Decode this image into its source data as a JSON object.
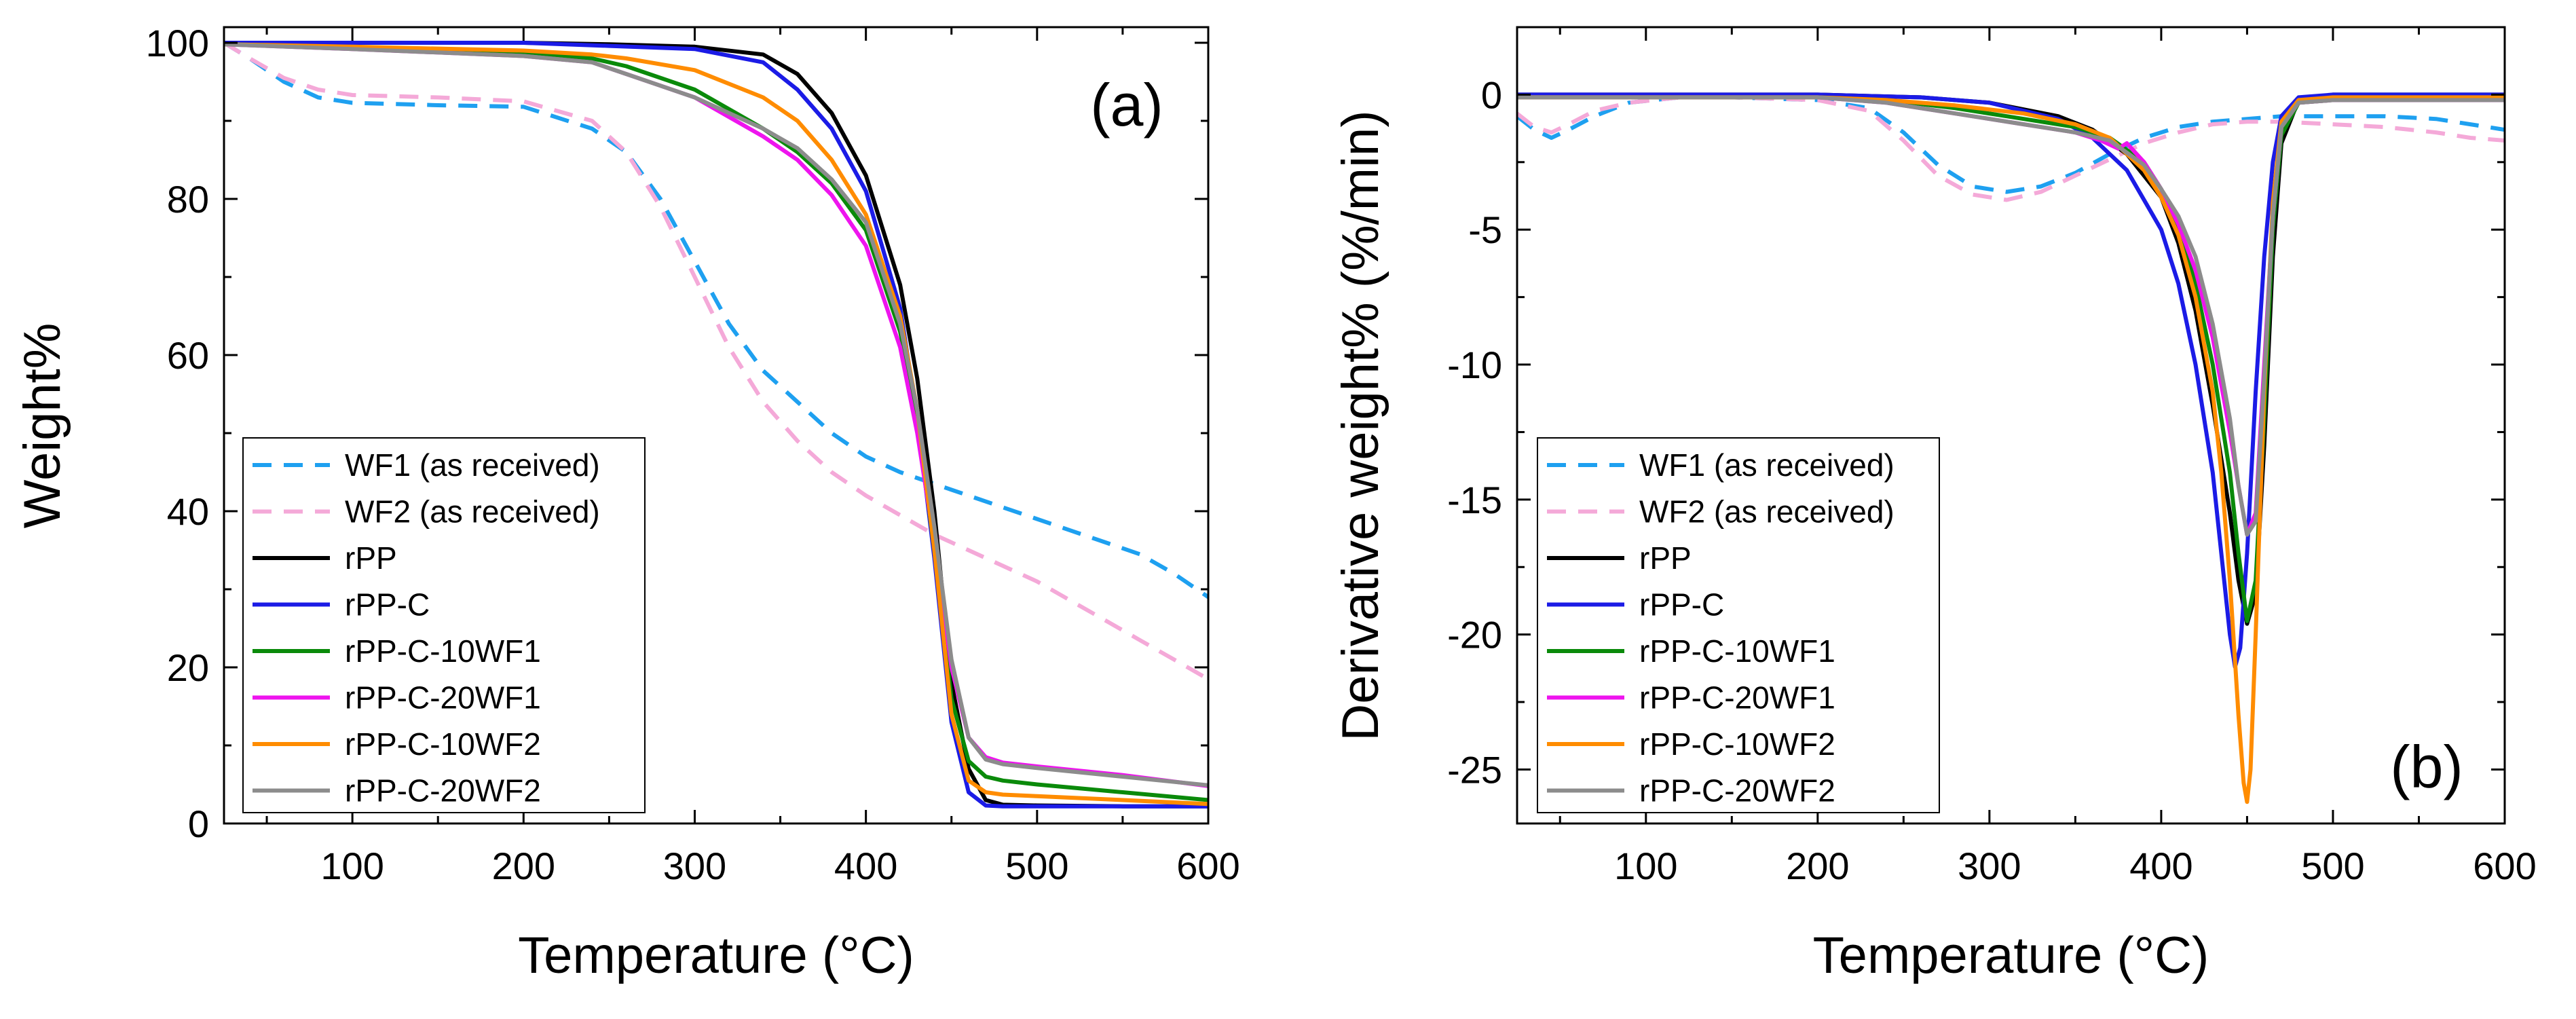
{
  "colors": {
    "WF1": "#1ea0f0",
    "WF2": "#f4a9d8",
    "rPP": "#000000",
    "rPP-C": "#1b1be6",
    "rPP-C-10WF1": "#0a8a0a",
    "rPP-C-20WF1": "#ee14ee",
    "rPP-C-10WF2": "#ff8c00",
    "rPP-C-20WF2": "#8c8c8c"
  },
  "chart_data": [
    {
      "type": "line",
      "panel_label": "(a)",
      "xlabel": "Temperature (°C)",
      "ylabel": "Weight%",
      "xlim": [
        25,
        600
      ],
      "ylim": [
        0,
        102
      ],
      "xticks": [
        100,
        200,
        300,
        400,
        500,
        600
      ],
      "yticks": [
        0,
        20,
        40,
        60,
        80,
        100
      ],
      "legend_position": "bottom-left",
      "series": [
        {
          "name": "WF1 (as received)",
          "style": "dashed",
          "x": [
            25,
            40,
            60,
            80,
            100,
            150,
            200,
            240,
            260,
            280,
            300,
            320,
            340,
            360,
            380,
            400,
            420,
            440,
            460,
            480,
            500,
            520,
            540,
            560,
            580,
            600
          ],
          "y": [
            100,
            98,
            95,
            93,
            92.3,
            92,
            91.8,
            89,
            86,
            80,
            72,
            64,
            58,
            54,
            50,
            47,
            45,
            43.5,
            42,
            40.5,
            39,
            37.5,
            36,
            34.5,
            32,
            29
          ]
        },
        {
          "name": "WF2 (as received)",
          "style": "dashed",
          "x": [
            25,
            40,
            60,
            80,
            100,
            150,
            200,
            240,
            260,
            280,
            300,
            320,
            340,
            360,
            380,
            400,
            420,
            440,
            460,
            480,
            500,
            520,
            540,
            560,
            580,
            600
          ],
          "y": [
            100,
            98,
            95.5,
            94,
            93.3,
            93,
            92.5,
            90,
            86,
            79,
            70,
            61,
            54,
            49,
            45,
            42,
            39.5,
            37,
            35,
            33,
            31,
            28.5,
            26,
            23.5,
            21,
            18.5
          ]
        },
        {
          "name": "rPP",
          "style": "solid",
          "x": [
            25,
            50,
            100,
            200,
            250,
            300,
            340,
            360,
            380,
            400,
            420,
            430,
            440,
            450,
            460,
            470,
            480,
            500,
            550,
            600
          ],
          "y": [
            100,
            100,
            100,
            100,
            99.8,
            99.5,
            98.5,
            96,
            91,
            83,
            69,
            57,
            40,
            18,
            7,
            3,
            2.4,
            2.3,
            2.2,
            2.2
          ]
        },
        {
          "name": "rPP-C",
          "style": "solid",
          "x": [
            25,
            50,
            100,
            200,
            250,
            300,
            340,
            360,
            380,
            400,
            420,
            430,
            440,
            450,
            460,
            470,
            480,
            500,
            550,
            600
          ],
          "y": [
            100,
            100,
            100,
            100,
            99.6,
            99.2,
            97.5,
            94,
            89,
            81,
            66,
            52,
            34,
            13,
            4,
            2.3,
            2.2,
            2.2,
            2.2,
            2.2
          ]
        },
        {
          "name": "rPP-C-10WF1",
          "style": "solid",
          "x": [
            25,
            50,
            100,
            200,
            240,
            260,
            300,
            340,
            360,
            380,
            400,
            420,
            430,
            440,
            450,
            460,
            470,
            480,
            500,
            550,
            600
          ],
          "y": [
            99.8,
            99.7,
            99.4,
            98.7,
            98,
            97,
            94,
            89,
            86,
            82,
            76,
            63,
            52,
            35,
            16,
            8,
            6,
            5.5,
            5,
            4,
            3
          ]
        },
        {
          "name": "rPP-C-20WF1",
          "style": "solid",
          "x": [
            25,
            50,
            100,
            200,
            240,
            260,
            300,
            340,
            360,
            380,
            400,
            420,
            430,
            440,
            450,
            460,
            470,
            480,
            500,
            550,
            600
          ],
          "y": [
            99.8,
            99.6,
            99.2,
            98.3,
            97.5,
            96,
            93,
            88,
            85,
            80.5,
            74,
            61,
            50,
            36,
            20,
            11,
            8.5,
            7.8,
            7.3,
            6.2,
            4.8
          ]
        },
        {
          "name": "rPP-C-10WF2",
          "style": "solid",
          "x": [
            25,
            50,
            100,
            200,
            240,
            260,
            300,
            340,
            360,
            380,
            400,
            420,
            430,
            440,
            450,
            460,
            470,
            480,
            500,
            550,
            600
          ],
          "y": [
            99.8,
            99.7,
            99.5,
            99,
            98.5,
            98,
            96.5,
            93,
            90,
            85,
            78,
            65,
            53,
            35,
            14,
            5.5,
            4,
            3.7,
            3.5,
            3,
            2.5
          ]
        },
        {
          "name": "rPP-C-20WF2",
          "style": "solid",
          "x": [
            25,
            50,
            100,
            200,
            240,
            260,
            300,
            340,
            360,
            380,
            400,
            420,
            430,
            440,
            450,
            460,
            470,
            480,
            500,
            550,
            600
          ],
          "y": [
            99.8,
            99.6,
            99.2,
            98.3,
            97.5,
            96,
            93,
            89,
            86.5,
            82.5,
            77,
            64,
            53,
            38,
            21,
            11,
            8.2,
            7.6,
            7.1,
            6,
            4.9
          ]
        }
      ]
    },
    {
      "type": "line",
      "panel_label": "(b)",
      "xlabel": "Temperature (°C)",
      "ylabel": "Derivative weight% (%/min)",
      "xlim": [
        25,
        600
      ],
      "ylim": [
        -27,
        2.5
      ],
      "xticks": [
        100,
        200,
        300,
        400,
        500,
        600
      ],
      "yticks": [
        0,
        -5,
        -10,
        -15,
        -20,
        -25
      ],
      "legend_position": "bottom-left",
      "series": [
        {
          "name": "WF1 (as received)",
          "style": "dashed",
          "x": [
            25,
            35,
            45,
            55,
            70,
            90,
            120,
            150,
            200,
            230,
            250,
            270,
            290,
            310,
            330,
            350,
            370,
            390,
            410,
            430,
            450,
            470,
            500,
            530,
            560,
            580,
            600
          ],
          "y": [
            -0.8,
            -1.3,
            -1.6,
            -1.3,
            -0.8,
            -0.3,
            -0.1,
            -0.1,
            -0.2,
            -0.5,
            -1.4,
            -2.6,
            -3.4,
            -3.6,
            -3.4,
            -2.9,
            -2.2,
            -1.6,
            -1.2,
            -1.0,
            -0.9,
            -0.8,
            -0.8,
            -0.8,
            -0.9,
            -1.1,
            -1.3
          ]
        },
        {
          "name": "WF2 (as received)",
          "style": "dashed",
          "x": [
            25,
            35,
            45,
            55,
            70,
            90,
            120,
            150,
            200,
            230,
            250,
            270,
            290,
            310,
            330,
            350,
            370,
            390,
            410,
            430,
            450,
            470,
            500,
            530,
            560,
            580,
            600
          ],
          "y": [
            -0.7,
            -1.2,
            -1.4,
            -1.1,
            -0.6,
            -0.3,
            -0.1,
            -0.1,
            -0.2,
            -0.6,
            -1.7,
            -3.0,
            -3.7,
            -3.9,
            -3.6,
            -3.0,
            -2.4,
            -1.8,
            -1.4,
            -1.1,
            -1.0,
            -1.0,
            -1.1,
            -1.2,
            -1.4,
            -1.6,
            -1.7
          ]
        },
        {
          "name": "rPP",
          "style": "solid",
          "x": [
            25,
            100,
            200,
            260,
            300,
            340,
            360,
            380,
            400,
            410,
            420,
            430,
            440,
            445,
            450,
            455,
            460,
            465,
            470,
            480,
            500,
            600
          ],
          "y": [
            0,
            0,
            0,
            -0.1,
            -0.3,
            -0.8,
            -1.3,
            -2.2,
            -3.8,
            -5.5,
            -8,
            -11.5,
            -15.5,
            -18,
            -19.6,
            -18.5,
            -13,
            -6,
            -1.8,
            -0.2,
            0,
            0
          ]
        },
        {
          "name": "rPP-C",
          "style": "solid",
          "x": [
            25,
            100,
            200,
            260,
            300,
            340,
            360,
            380,
            400,
            410,
            420,
            430,
            435,
            440,
            443,
            446,
            450,
            455,
            460,
            465,
            470,
            480,
            500,
            600
          ],
          "y": [
            0,
            0,
            0,
            -0.1,
            -0.3,
            -0.9,
            -1.6,
            -2.8,
            -5,
            -7,
            -10,
            -14,
            -17,
            -20,
            -21.2,
            -20.5,
            -17,
            -11,
            -6,
            -2.5,
            -0.8,
            -0.1,
            0,
            0
          ]
        },
        {
          "name": "rPP-C-10WF1",
          "style": "solid",
          "x": [
            25,
            100,
            200,
            240,
            280,
            320,
            350,
            370,
            390,
            400,
            410,
            420,
            430,
            440,
            445,
            450,
            455,
            460,
            465,
            470,
            480,
            500,
            600
          ],
          "y": [
            -0.1,
            -0.1,
            -0.1,
            -0.2,
            -0.5,
            -0.9,
            -1.2,
            -1.6,
            -2.5,
            -3.5,
            -5,
            -7,
            -10,
            -14,
            -17,
            -19.5,
            -18,
            -12,
            -5,
            -1.5,
            -0.3,
            -0.2,
            -0.2
          ]
        },
        {
          "name": "rPP-C-20WF1",
          "style": "solid",
          "x": [
            25,
            100,
            200,
            240,
            280,
            320,
            350,
            365,
            375,
            380,
            390,
            400,
            410,
            420,
            430,
            440,
            445,
            450,
            455,
            460,
            465,
            470,
            480,
            500,
            600
          ],
          "y": [
            -0.1,
            -0.1,
            -0.1,
            -0.3,
            -0.7,
            -1.1,
            -1.4,
            -1.7,
            -2,
            -1.8,
            -2.5,
            -3.5,
            -4.8,
            -6.5,
            -9,
            -12.5,
            -14.5,
            -16.3,
            -15.5,
            -10,
            -4.5,
            -1.2,
            -0.3,
            -0.2,
            -0.2
          ]
        },
        {
          "name": "rPP-C-10WF2",
          "style": "solid",
          "x": [
            25,
            100,
            200,
            240,
            280,
            320,
            350,
            370,
            390,
            400,
            410,
            420,
            430,
            435,
            440,
            445,
            448,
            450,
            452,
            455,
            460,
            465,
            470,
            480,
            500,
            600
          ],
          "y": [
            -0.1,
            -0.1,
            -0.1,
            -0.2,
            -0.4,
            -0.7,
            -1.1,
            -1.6,
            -2.8,
            -3.8,
            -5.2,
            -7.5,
            -11,
            -14,
            -18,
            -23,
            -25.5,
            -26.2,
            -25,
            -20,
            -11,
            -4,
            -1,
            -0.2,
            -0.1,
            -0.1
          ]
        },
        {
          "name": "rPP-C-20WF2",
          "style": "solid",
          "x": [
            25,
            100,
            200,
            240,
            280,
            320,
            350,
            370,
            390,
            400,
            410,
            420,
            430,
            440,
            445,
            450,
            455,
            460,
            465,
            470,
            480,
            500,
            600
          ],
          "y": [
            -0.1,
            -0.1,
            -0.1,
            -0.3,
            -0.7,
            -1.1,
            -1.4,
            -1.7,
            -2.6,
            -3.5,
            -4.5,
            -6,
            -8.5,
            -12,
            -14.5,
            -16.3,
            -15.8,
            -10.5,
            -4.5,
            -1.2,
            -0.3,
            -0.2,
            -0.2
          ]
        }
      ]
    }
  ]
}
